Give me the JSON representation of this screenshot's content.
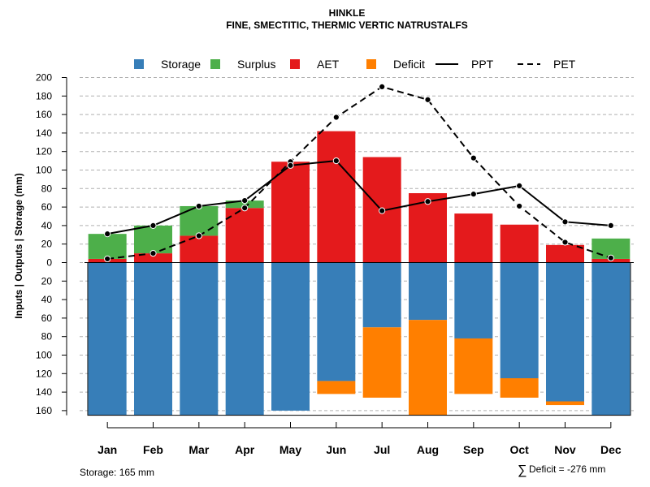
{
  "chart_data": {
    "type": "bar",
    "title": "HINKLE",
    "subtitle": "FINE, SMECTITIC, THERMIC VERTIC NATRUSTALFS",
    "ylabel": "Inputs | Outputs | Storage    (mm)",
    "ylim": [
      -165,
      200
    ],
    "yticks_display": [
      {
        "value": 200,
        "label": "200"
      },
      {
        "value": 180,
        "label": "180"
      },
      {
        "value": 160,
        "label": "160"
      },
      {
        "value": 140,
        "label": "140"
      },
      {
        "value": 120,
        "label": "120"
      },
      {
        "value": 100,
        "label": "100"
      },
      {
        "value": 80,
        "label": "80"
      },
      {
        "value": 60,
        "label": "60"
      },
      {
        "value": 40,
        "label": "40"
      },
      {
        "value": 20,
        "label": "20"
      },
      {
        "value": 0,
        "label": "0"
      },
      {
        "value": -20,
        "label": "20"
      },
      {
        "value": -40,
        "label": "40"
      },
      {
        "value": -60,
        "label": "60"
      },
      {
        "value": -80,
        "label": "80"
      },
      {
        "value": -100,
        "label": "100"
      },
      {
        "value": -120,
        "label": "120"
      },
      {
        "value": -140,
        "label": "140"
      },
      {
        "value": -160,
        "label": "160"
      }
    ],
    "categories": [
      "Jan",
      "Feb",
      "Mar",
      "Apr",
      "May",
      "Jun",
      "Jul",
      "Aug",
      "Sep",
      "Oct",
      "Nov",
      "Dec"
    ],
    "legend": [
      {
        "label": "Storage",
        "kind": "box",
        "color": "#377EB8"
      },
      {
        "label": "Surplus",
        "kind": "box",
        "color": "#4DAF4A"
      },
      {
        "label": "AET",
        "kind": "box",
        "color": "#E41A1C"
      },
      {
        "label": "Deficit",
        "kind": "box",
        "color": "#FF7F00"
      },
      {
        "label": "PPT",
        "kind": "solid",
        "color": "#000000"
      },
      {
        "label": "PET",
        "kind": "dashed",
        "color": "#000000"
      }
    ],
    "series": [
      {
        "name": "AET",
        "color": "#E41A1C",
        "values": [
          4,
          10,
          29,
          59,
          109,
          142,
          114,
          75,
          53,
          41,
          19,
          4
        ]
      },
      {
        "name": "Surplus",
        "color": "#4DAF4A",
        "values": [
          27,
          30,
          32,
          8,
          0,
          0,
          0,
          0,
          0,
          0,
          0,
          22
        ]
      },
      {
        "name": "Storage",
        "color": "#377EB8",
        "values": [
          165,
          165,
          165,
          165,
          160,
          128,
          70,
          62,
          82,
          125,
          150,
          165
        ]
      },
      {
        "name": "Deficit",
        "color": "#FF7F00",
        "values": [
          0,
          0,
          0,
          0,
          0,
          14,
          76,
          103,
          60,
          21,
          4,
          0
        ]
      },
      {
        "name": "PPT",
        "color": "#000000",
        "values": [
          31,
          40,
          61,
          67,
          105,
          110,
          56,
          66,
          74,
          83,
          44,
          40
        ]
      },
      {
        "name": "PET",
        "color": "#000000",
        "values": [
          4,
          10,
          29,
          59,
          109,
          157,
          190,
          176,
          113,
          61,
          22,
          5
        ]
      }
    ],
    "grid": true,
    "legend_position": "top"
  },
  "footer": {
    "storage": "Storage: 165 mm",
    "deficit_symbol": "∑",
    "deficit": "Deficit = -276 mm"
  }
}
